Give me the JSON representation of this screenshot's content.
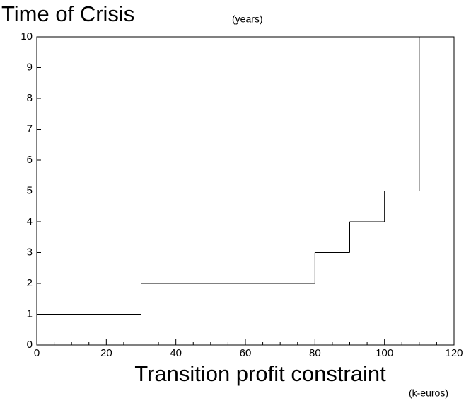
{
  "chart_data": {
    "type": "step",
    "title": "Time of Crisis",
    "y_unit": "(years)",
    "x_label": "Transition profit constraint",
    "x_unit": "(k-euros)",
    "x": [
      0,
      30,
      80,
      90,
      100,
      110
    ],
    "values": [
      1,
      2,
      3,
      4,
      5,
      10
    ],
    "color": "#000000",
    "xlim": [
      0,
      120
    ],
    "xticks": [
      0,
      20,
      40,
      60,
      80,
      100,
      120
    ],
    "xminorticks": [
      5,
      10,
      15,
      25,
      30,
      35,
      45,
      50,
      55,
      65,
      70,
      75,
      85,
      90,
      95,
      105,
      110,
      115
    ],
    "ylim": [
      0,
      10
    ],
    "yticks": [
      0,
      1,
      2,
      3,
      4,
      5,
      6,
      7,
      8,
      9,
      10
    ],
    "grid": false
  }
}
